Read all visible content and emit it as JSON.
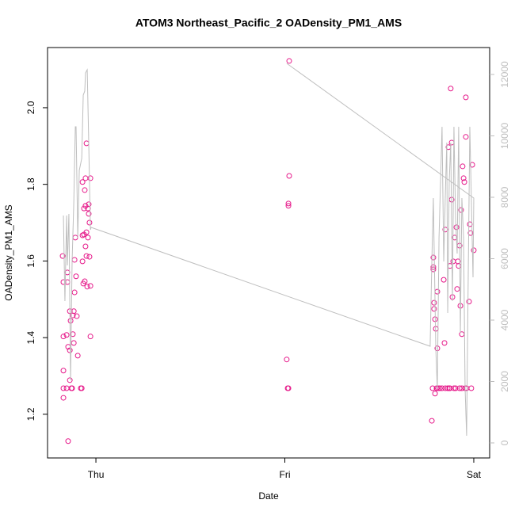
{
  "chart_data": {
    "type": "scatter",
    "title": "ATOM3 Northeast_Pacific_2 OADensity_PM1_AMS",
    "xlabel": "Date",
    "ylabel": "OADensity_PM1_AMS",
    "xlim": [
      -0.256,
      2.084
    ],
    "xticks": [
      {
        "value": 0,
        "label": "Thu"
      },
      {
        "value": 1,
        "label": "Fri"
      },
      {
        "value": 2,
        "label": "Sat"
      }
    ],
    "ylim": [
      1.086,
      2.157
    ],
    "yticks": [
      1.2,
      1.4,
      1.6,
      1.8,
      {
        "value": 2,
        "label": "2.0"
      }
    ],
    "y2lim": [
      -490,
      12877
    ],
    "y2ticks": [
      0,
      2000,
      4000,
      6000,
      8000,
      10000,
      12000
    ],
    "series": [
      {
        "color": "#e6198a",
        "x": [
          -0.176,
          -0.172,
          -0.172,
          -0.172,
          -0.172,
          -0.172,
          -0.155,
          -0.155,
          -0.151,
          -0.151,
          -0.147,
          -0.147,
          -0.138,
          -0.138,
          -0.138,
          -0.134,
          -0.13,
          -0.126,
          -0.122,
          -0.122,
          -0.117,
          -0.117,
          -0.113,
          -0.113,
          -0.109,
          -0.105,
          -0.101,
          -0.096,
          -0.08,
          -0.075,
          -0.071,
          -0.071,
          -0.071,
          -0.067,
          -0.063,
          -0.063,
          -0.059,
          -0.059,
          -0.055,
          -0.055,
          -0.055,
          -0.05,
          -0.05,
          -0.05,
          -0.046,
          -0.042,
          -0.042,
          -0.038,
          -0.038,
          -0.034,
          -0.034,
          -0.029,
          -0.029,
          -0.029,
          1.023,
          1.023,
          1.019,
          1.019,
          1.01,
          1.015,
          1.019,
          1.778,
          1.782,
          1.786,
          1.786,
          1.786,
          1.79,
          1.79,
          1.795,
          1.795,
          1.799,
          1.803,
          1.807,
          1.807,
          1.811,
          1.82,
          1.832,
          1.841,
          1.845,
          1.849,
          1.849,
          1.862,
          1.866,
          1.87,
          1.874,
          1.874,
          1.878,
          1.883,
          1.883,
          1.887,
          1.891,
          1.895,
          1.899,
          1.904,
          1.908,
          1.912,
          1.916,
          1.92,
          1.925,
          1.925,
          1.929,
          1.933,
          1.937,
          1.937,
          1.941,
          1.946,
          1.95,
          1.954,
          1.958,
          1.958,
          1.962,
          1.975,
          1.979,
          1.983,
          1.987,
          1.992,
          2.0
        ],
        "values": [
          1.613,
          1.545,
          1.403,
          1.314,
          1.268,
          1.243,
          1.407,
          1.268,
          1.57,
          1.545,
          1.376,
          1.13,
          1.367,
          1.289,
          1.469,
          1.444,
          1.268,
          1.268,
          1.458,
          1.409,
          1.469,
          1.386,
          1.603,
          1.518,
          1.661,
          1.56,
          1.456,
          1.353,
          1.268,
          1.268,
          1.599,
          1.806,
          1.667,
          1.541,
          1.737,
          1.669,
          1.785,
          1.547,
          1.816,
          1.744,
          1.638,
          1.907,
          1.613,
          1.675,
          1.533,
          1.737,
          1.661,
          1.748,
          1.723,
          1.7,
          1.611,
          1.535,
          1.403,
          1.816,
          2.122,
          1.822,
          1.75,
          1.744,
          1.343,
          1.268,
          1.268,
          1.183,
          1.268,
          1.584,
          1.609,
          1.578,
          1.491,
          1.475,
          1.448,
          1.254,
          1.423,
          1.268,
          1.372,
          1.52,
          1.268,
          1.268,
          1.268,
          1.551,
          1.386,
          1.682,
          1.268,
          1.268,
          1.897,
          1.268,
          1.587,
          1.268,
          2.05,
          1.909,
          1.76,
          1.506,
          1.599,
          1.268,
          1.661,
          1.268,
          1.688,
          1.527,
          1.599,
          1.587,
          1.64,
          1.268,
          1.483,
          1.733,
          1.409,
          1.268,
          1.847,
          1.816,
          1.806,
          1.268,
          2.027,
          1.924,
          1.268,
          1.494,
          1.696,
          1.673,
          1.268,
          1.851,
          1.628
        ]
      },
      {
        "type": "line",
        "axis": "y2",
        "color": "#bebebe",
        "x": [
          -0.172,
          -0.164,
          -0.155,
          -0.151,
          -0.143,
          -0.134,
          -0.126,
          -0.117,
          -0.109,
          -0.105,
          -0.096,
          -0.088,
          -0.075,
          -0.067,
          -0.059,
          -0.055,
          -0.046,
          -0.038,
          -0.029,
          -0.025,
          1.769,
          1.778,
          1.786,
          1.79,
          1.799,
          1.807,
          1.816,
          1.824,
          1.832,
          1.841,
          1.849,
          1.857,
          1.862,
          1.87,
          1.878,
          1.887,
          1.895,
          1.904,
          1.912,
          1.92,
          1.929,
          1.937,
          1.946,
          1.954,
          1.962,
          1.971,
          1.979,
          1.987,
          1.996,
          2.0,
          1.01
        ],
        "values": [
          7406,
          4619,
          7406,
          5781,
          7458,
          2039,
          5910,
          7845,
          10297,
          10297,
          6684,
          8877,
          9265,
          11329,
          11458,
          12052,
          12155,
          9781,
          6942,
          7019,
          3148,
          5910,
          7974,
          6426,
          3071,
          1781,
          6684,
          8490,
          10297,
          5910,
          7974,
          9781,
          4232,
          8490,
          9781,
          4619,
          10297,
          7200,
          6168,
          10297,
          3587,
          7974,
          6684,
          1781,
          232,
          5652,
          10297,
          7974,
          5394,
          7974,
          12361
        ]
      }
    ]
  }
}
